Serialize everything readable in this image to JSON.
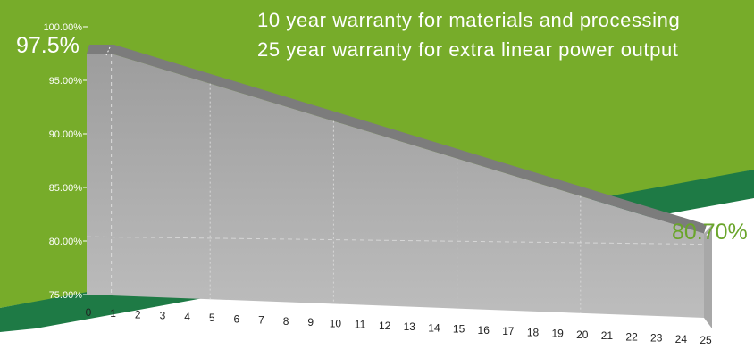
{
  "colors": {
    "green_background": "#77ac2a",
    "dark_green_band": "#1e7a45",
    "end_label_green": "#6aa52b",
    "block_front": "#bdbdbd",
    "block_top": "#7c7c7c",
    "block_side": "#a8a8a8",
    "text_white": "#ffffff",
    "axis_text": "#222222"
  },
  "headline": {
    "line1": "10 year warranty for materials and processing",
    "line2": "25 year warranty for extra linear power output"
  },
  "callouts": {
    "start": "97.5%",
    "end": "80.70%"
  },
  "chart_data": {
    "type": "area",
    "title": "",
    "xlabel": "",
    "ylabel": "",
    "x": [
      0,
      1,
      25
    ],
    "y": [
      97.5,
      97.5,
      80.7
    ],
    "xlim": [
      0,
      25
    ],
    "ylim": [
      75,
      100
    ],
    "x_ticks": [
      "0",
      "1",
      "2",
      "3",
      "4",
      "5",
      "6",
      "7",
      "8",
      "9",
      "10",
      "11",
      "12",
      "13",
      "14",
      "15",
      "16",
      "17",
      "18",
      "19",
      "20",
      "21",
      "22",
      "23",
      "24",
      "25"
    ],
    "y_ticks": [
      "75.00%",
      "80.00%",
      "85.00%",
      "90.00%",
      "95.00%",
      "100.00%"
    ],
    "style": "3d-block",
    "grid": "dotted vertical guides"
  }
}
